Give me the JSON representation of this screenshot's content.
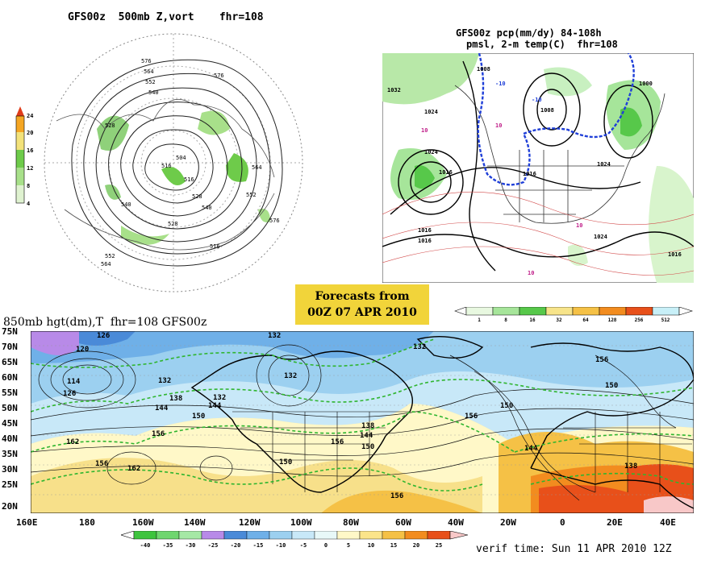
{
  "panel_500mb": {
    "title": "GFS00z  500mb Z,vort    fhr=108",
    "contour_labels": [
      "576",
      "564",
      "552",
      "540",
      "528",
      "516",
      "504",
      "516",
      "528",
      "540",
      "552",
      "564",
      "576",
      "576",
      "564",
      "552",
      "540",
      "528",
      "516"
    ],
    "colorbar_ticks": [
      "24",
      "20",
      "16",
      "12",
      "8",
      "4"
    ],
    "colorbar_colors": [
      "#e03c1a",
      "#f5a623",
      "#f3e27a",
      "#6ecb4a",
      "#a8e08a",
      "#dff2d0"
    ]
  },
  "panel_pcp": {
    "title_line1": "GFS00z pcp(mm/dy) 84-108h",
    "title_line2": "pmsl, 2-m temp(C)  fhr=108",
    "pressure_labels": [
      "1032",
      "1024",
      "1024",
      "1016",
      "1016",
      "1016",
      "1008",
      "1008",
      "1000",
      "1016",
      "1024",
      "1024",
      "1016"
    ],
    "temp_labels": [
      "10",
      "10",
      "10",
      "-10",
      "-10",
      "10"
    ],
    "colorbar_ticks": [
      "1",
      "8",
      "16",
      "32",
      "64",
      "128",
      "256",
      "512"
    ],
    "colorbar_colors": [
      "#e8f8e0",
      "#a6e59a",
      "#57c84a",
      "#f7e48a",
      "#f5c146",
      "#f28c1f",
      "#e8501a",
      "#c8f0f8"
    ]
  },
  "forecast_box": {
    "line1": "Forecasts from",
    "line2": "00Z 07 APR 2010"
  },
  "panel_850mb": {
    "title": "850mb hgt(dm),T  fhr=108 GFS00z",
    "lat_labels": [
      "75N",
      "70N",
      "65N",
      "60N",
      "55N",
      "50N",
      "45N",
      "40N",
      "35N",
      "30N",
      "25N",
      "20N"
    ],
    "lon_labels": [
      "160E",
      "180",
      "160W",
      "140W",
      "120W",
      "100W",
      "80W",
      "60W",
      "40W",
      "20W",
      "0",
      "20E",
      "40E"
    ],
    "height_labels": [
      "126",
      "120",
      "114",
      "126",
      "132",
      "138",
      "144",
      "150",
      "156",
      "162",
      "156",
      "162",
      "132",
      "144",
      "132",
      "150",
      "156",
      "150",
      "138",
      "144",
      "150",
      "156",
      "144",
      "138",
      "156",
      "150",
      "132",
      "132",
      "156"
    ],
    "colorbar_ticks": [
      "-40",
      "-35",
      "-30",
      "-25",
      "-20",
      "-15",
      "-10",
      "-5",
      "0",
      "5",
      "10",
      "15",
      "20",
      "25"
    ],
    "colorbar_colors": [
      "#3ec43e",
      "#6fd66f",
      "#a5e8a5",
      "#b88ae8",
      "#4a8ad8",
      "#6fb0e8",
      "#9cd0f0",
      "#c8e8f8",
      "#e8f8f8",
      "#fff8c8",
      "#fbe48a",
      "#f5c146",
      "#f28c1f",
      "#e8501a"
    ]
  },
  "verif_time": "verif time: Sun 11 APR 2010 12Z"
}
